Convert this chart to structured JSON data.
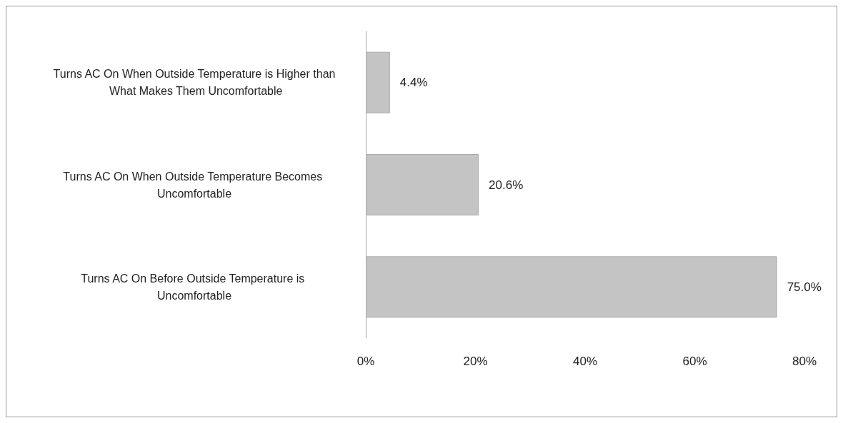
{
  "chart_data": {
    "type": "bar",
    "orientation": "horizontal",
    "categories": [
      "Turns AC On When Outside Temperature is Higher than What Makes Them Uncomfortable",
      "Turns AC On When Outside Temperature Becomes Uncomfortable",
      "Turns AC On Before Outside Temperature is Uncomfortable"
    ],
    "values": [
      4.4,
      20.6,
      75.0
    ],
    "value_labels": [
      "4.4%",
      "20.6%",
      "75.0%"
    ],
    "color": "#c4c4c4",
    "xlim": [
      0,
      80
    ],
    "xticks": [
      {
        "value": 0,
        "label": "0%"
      },
      {
        "value": 20,
        "label": "20%"
      },
      {
        "value": 40,
        "label": "40%"
      },
      {
        "value": 60,
        "label": "60%"
      },
      {
        "value": 80,
        "label": "80%"
      }
    ],
    "grid": false
  }
}
